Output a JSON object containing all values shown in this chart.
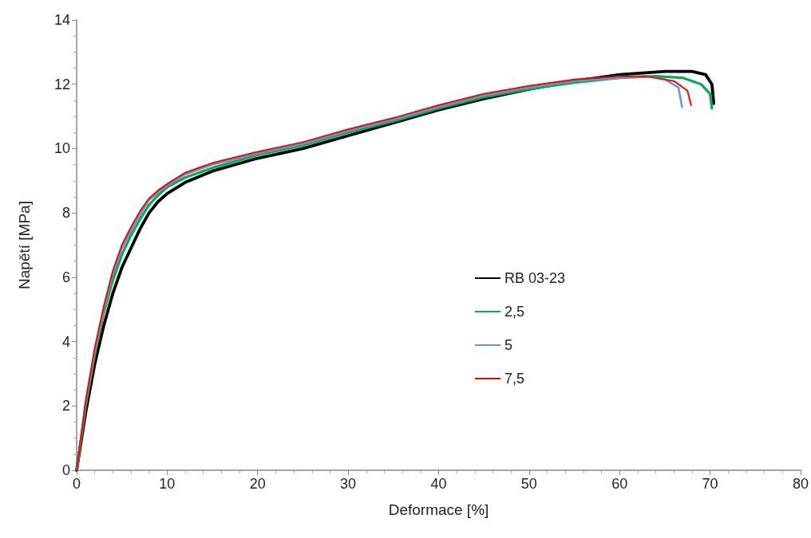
{
  "chart_data": {
    "type": "line",
    "xlabel": "Deformace [%]",
    "ylabel": "Napětí [MPa]",
    "xlim": [
      0,
      80
    ],
    "xticks": [
      0,
      10,
      20,
      30,
      40,
      50,
      60,
      70,
      80
    ],
    "ylim": [
      0,
      14
    ],
    "yticks": [
      0,
      2,
      4,
      6,
      8,
      10,
      12,
      14
    ],
    "grid": false,
    "legend": "right",
    "marker": "none",
    "line_style": "solid",
    "series": [
      {
        "name": "RB 03-23",
        "color": "#000000",
        "x": [
          0,
          1,
          2,
          3,
          4,
          5,
          6,
          7,
          8,
          9,
          10,
          12,
          15,
          20,
          25,
          30,
          35,
          40,
          45,
          50,
          55,
          60,
          65,
          68,
          69.5,
          70.2,
          70.4
        ],
        "values": [
          0,
          1.8,
          3.3,
          4.5,
          5.5,
          6.3,
          6.9,
          7.5,
          8.0,
          8.35,
          8.6,
          8.95,
          9.3,
          9.7,
          10.0,
          10.4,
          10.8,
          11.2,
          11.55,
          11.85,
          12.1,
          12.3,
          12.4,
          12.4,
          12.3,
          12.0,
          11.4
        ]
      },
      {
        "name": "2,5",
        "color": "#00b050",
        "x": [
          0,
          1,
          2,
          3,
          4,
          5,
          6,
          7,
          8,
          9,
          10,
          12,
          15,
          20,
          25,
          30,
          35,
          40,
          45,
          50,
          55,
          60,
          64,
          67,
          69,
          70,
          70.2
        ],
        "values": [
          0,
          2.0,
          3.6,
          4.9,
          5.9,
          6.7,
          7.3,
          7.8,
          8.25,
          8.55,
          8.8,
          9.1,
          9.4,
          9.8,
          10.1,
          10.5,
          10.85,
          11.25,
          11.6,
          11.85,
          12.05,
          12.2,
          12.25,
          12.2,
          12.0,
          11.7,
          11.25
        ]
      },
      {
        "name": "5",
        "color": "#5b9bd5",
        "x": [
          0,
          1,
          2,
          3,
          4,
          5,
          6,
          7,
          8,
          9,
          10,
          12,
          15,
          20,
          25,
          30,
          35,
          40,
          45,
          50,
          55,
          60,
          63,
          65,
          66.5,
          66.9
        ],
        "values": [
          0,
          2.1,
          3.7,
          5.0,
          6.1,
          6.9,
          7.45,
          7.95,
          8.4,
          8.65,
          8.85,
          9.2,
          9.5,
          9.85,
          10.15,
          10.55,
          10.9,
          11.3,
          11.65,
          11.9,
          12.1,
          12.2,
          12.25,
          12.15,
          11.9,
          11.3
        ]
      },
      {
        "name": "7,5",
        "color": "#ff0000",
        "x": [
          0,
          1,
          2,
          3,
          4,
          5,
          6,
          7,
          8,
          9,
          10,
          12,
          15,
          20,
          25,
          30,
          35,
          40,
          45,
          50,
          55,
          60,
          63,
          66,
          67.5,
          67.9
        ],
        "values": [
          0,
          2.15,
          3.8,
          5.1,
          6.2,
          7.0,
          7.55,
          8.05,
          8.45,
          8.7,
          8.9,
          9.25,
          9.55,
          9.9,
          10.2,
          10.6,
          10.95,
          11.35,
          11.7,
          11.95,
          12.15,
          12.25,
          12.25,
          12.1,
          11.8,
          11.35
        ]
      }
    ]
  }
}
